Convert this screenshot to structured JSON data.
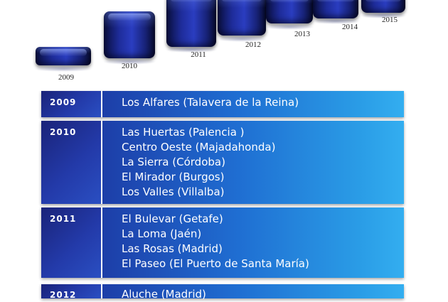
{
  "blocks": [
    {
      "year": "2009"
    },
    {
      "year": "2010"
    },
    {
      "year": "2011"
    },
    {
      "year": "2012"
    },
    {
      "year": "2013"
    },
    {
      "year": "2014"
    },
    {
      "year": "2015"
    }
  ],
  "timeline": [
    {
      "year": "2009",
      "centers": [
        "Los Alfares (Talavera de la Reina)"
      ]
    },
    {
      "year": "2010",
      "centers": [
        "Las Huertas (Palencia )",
        "Centro Oeste (Majadahonda)",
        "La Sierra (Córdoba)",
        "El Mirador (Burgos)",
        "Los Valles (Villalba)"
      ]
    },
    {
      "year": "2011",
      "centers": [
        "El Bulevar (Getafe)",
        "La Loma (Jaén)",
        "Las Rosas (Madrid)",
        "El Paseo (El Puerto de Santa María)"
      ]
    },
    {
      "year": "2012",
      "centers": [
        "Aluche (Madrid)"
      ]
    }
  ],
  "colors": {
    "block_dark": "#0a0f3e",
    "block_mid": "#2a3dc0",
    "year_cell": "#233aa9",
    "list_left": "#1d3ea8",
    "list_right": "#33aef0"
  }
}
